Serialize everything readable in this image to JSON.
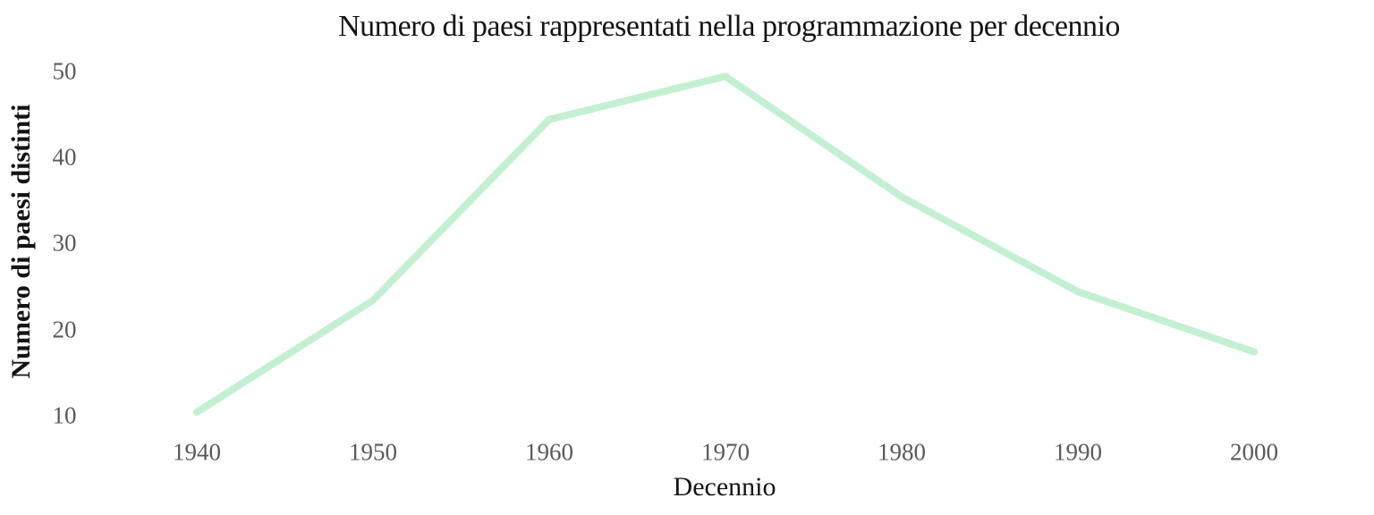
{
  "chart_data": {
    "type": "line",
    "title": "Numero di paesi rappresentati nella programmazione per decennio",
    "xlabel": "Decennio",
    "ylabel": "Numero di paesi distinti",
    "x": [
      1940,
      1950,
      1960,
      1970,
      1980,
      1990,
      2000
    ],
    "values": [
      10,
      23,
      44,
      49,
      35,
      24,
      17
    ],
    "xticks": [
      "1940",
      "1950",
      "1960",
      "1970",
      "1980",
      "1990",
      "2000"
    ],
    "yticks": [
      "10",
      "20",
      "30",
      "40",
      "50"
    ],
    "ytick_values": [
      10,
      20,
      30,
      40,
      50
    ],
    "xlim": [
      1933,
      2007
    ],
    "ylim": [
      7,
      52
    ],
    "grid": false,
    "legend": false,
    "line_color": "#c4f0d2",
    "line_width": 8,
    "tick_label_color": "#5a5a5a",
    "text_color": "#141414",
    "background_color": "#ffffff"
  }
}
